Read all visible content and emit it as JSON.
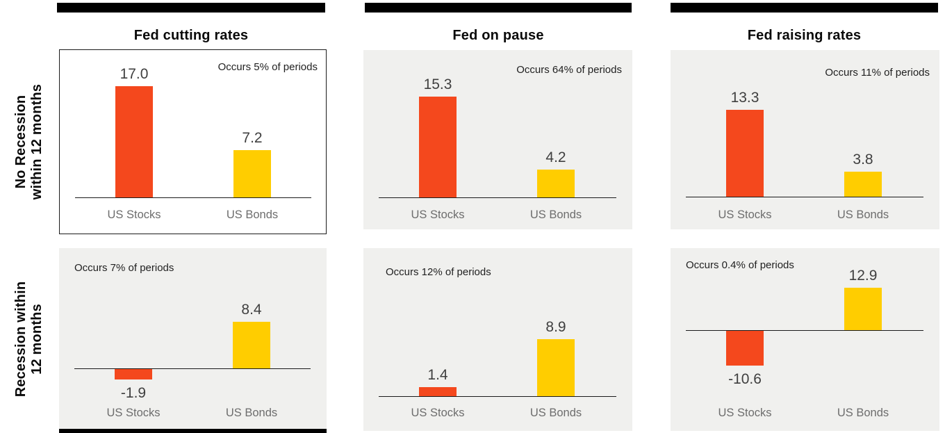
{
  "chart_data": {
    "type": "bar",
    "title": "",
    "categories": [
      "US Stocks",
      "US Bonds"
    ],
    "columns": [
      {
        "title": "Fed cutting rates"
      },
      {
        "title": "Fed on pause"
      },
      {
        "title": "Fed raising rates"
      }
    ],
    "rows": [
      {
        "label": "No Recession within 12 months",
        "label_line1": "No Recession",
        "label_line2": "within 12 months"
      },
      {
        "label": "Recession within 12 months",
        "label_line1": "Recession within",
        "label_line2": "12 months"
      }
    ],
    "panels": [
      {
        "row": "No Recession within 12 months",
        "column": "Fed cutting rates",
        "occurs": "Occurs 5% of periods",
        "values": [
          17.0,
          7.2
        ],
        "value_labels": [
          "17.0",
          "7.2"
        ]
      },
      {
        "row": "No Recession within 12 months",
        "column": "Fed on pause",
        "occurs": "Occurs 64% of periods",
        "values": [
          15.3,
          4.2
        ],
        "value_labels": [
          "15.3",
          "4.2"
        ]
      },
      {
        "row": "No Recession within 12 months",
        "column": "Fed raising rates",
        "occurs": "Occurs 11% of periods",
        "values": [
          13.3,
          3.8
        ],
        "value_labels": [
          "13.3",
          "3.8"
        ]
      },
      {
        "row": "Recession within 12 months",
        "column": "Fed cutting rates",
        "occurs": "Occurs 7% of periods",
        "values": [
          -1.9,
          8.4
        ],
        "value_labels": [
          "-1.9",
          "8.4"
        ]
      },
      {
        "row": "Recession within 12 months",
        "column": "Fed on pause",
        "occurs": "Occurs 12% of periods",
        "values": [
          1.4,
          8.9
        ],
        "value_labels": [
          "1.4",
          "8.9"
        ]
      },
      {
        "row": "Recession within 12 months",
        "column": "Fed raising rates",
        "occurs": "Occurs 0.4% of periods",
        "values": [
          -10.6,
          12.9
        ],
        "value_labels": [
          "-10.6",
          "12.9"
        ]
      }
    ],
    "colors": {
      "stocks": "#f4481d",
      "bonds": "#ffcd00",
      "panel_background": "#f0f0ee",
      "header_bar": "#000000",
      "axis": "#1a1a1a",
      "category_text": "#6d6d6d",
      "value_text": "#3f3f3f"
    },
    "legend_position": "none",
    "grid": "off"
  }
}
